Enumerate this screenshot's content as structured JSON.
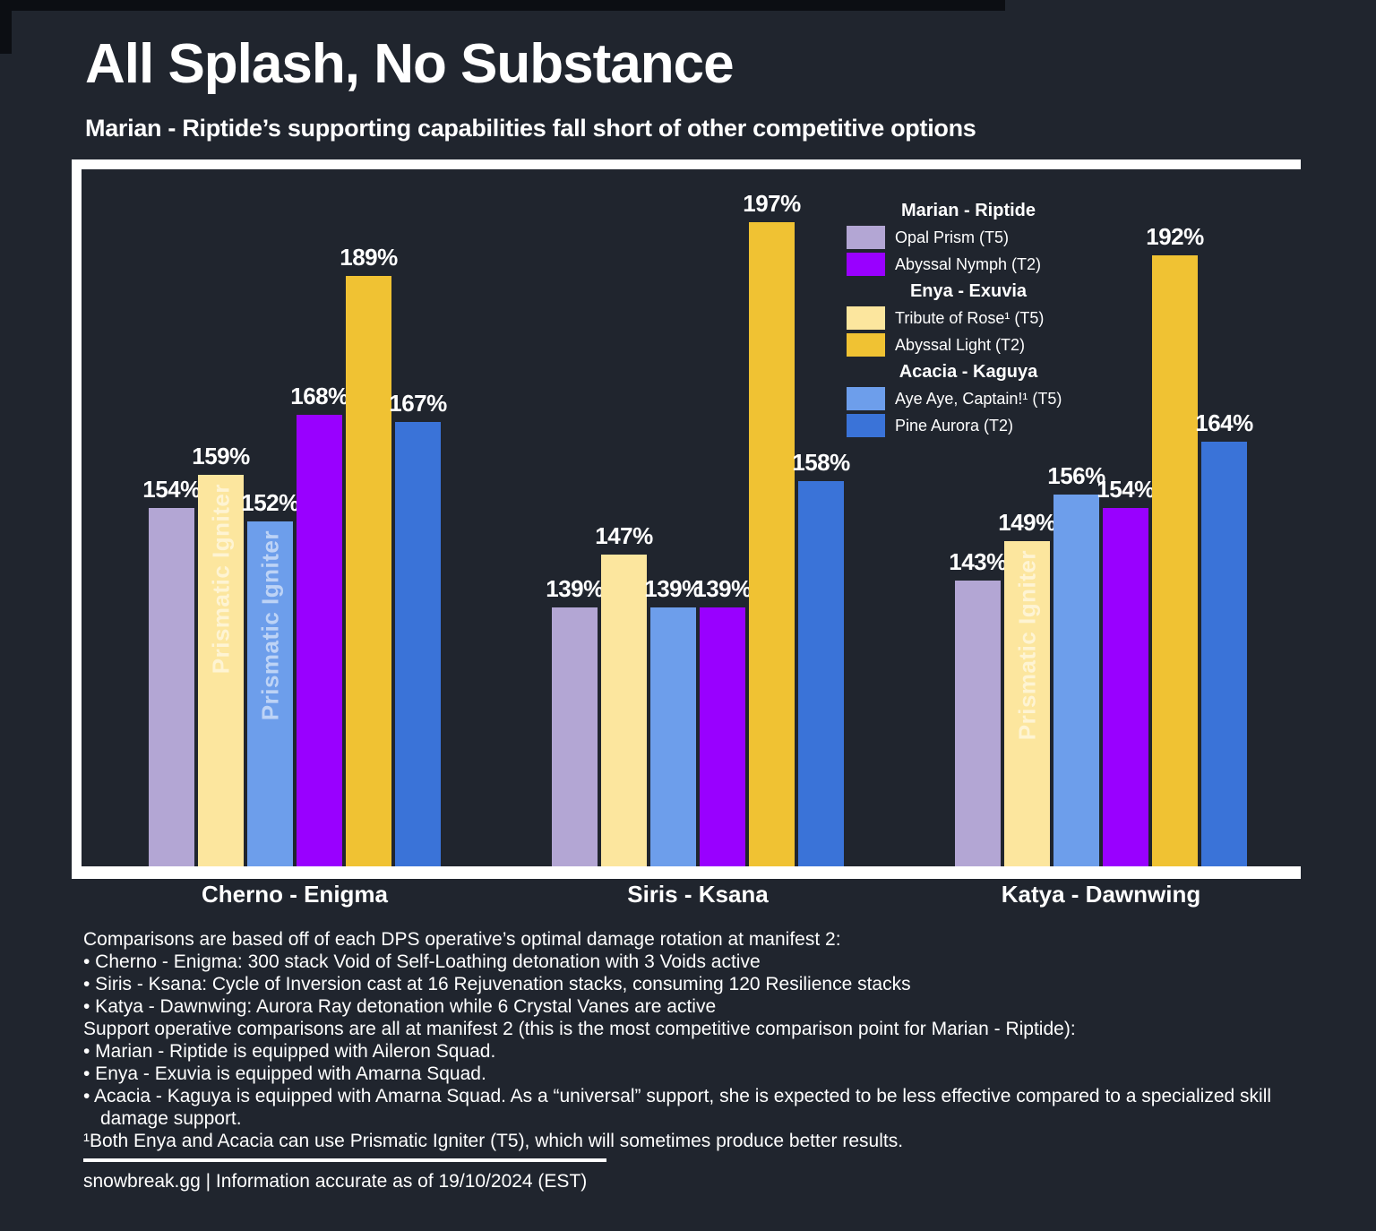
{
  "page": {
    "title": "All Splash, No Substance",
    "subtitle": "Marian - Riptide’s supporting capabilities fall short of other competitive options"
  },
  "colors": {
    "background": "#20252e",
    "frame": "#ffffff",
    "edge_artifact": "#0c0e13",
    "annotation_text": "rgba(255,255,255,0.55)"
  },
  "chart_data": {
    "type": "bar",
    "title": "All Splash, No Substance",
    "subtitle": "Marian - Riptide’s supporting capabilities fall short of other competitive options",
    "categories": [
      "Cherno - Enigma",
      "Siris - Ksana",
      "Katya - Dawnwing"
    ],
    "series": [
      {
        "name": "Opal Prism (T5)",
        "operative": "Marian - Riptide",
        "color": "#b3a6d4",
        "values": [
          154,
          139,
          143
        ]
      },
      {
        "name": "Tribute of Rose¹ (T5)",
        "operative": "Enya - Exuvia",
        "color": "#fce69e",
        "values": [
          159,
          147,
          149
        ]
      },
      {
        "name": "Aye Aye, Captain!¹ (T5)",
        "operative": "Acacia - Kaguya",
        "color": "#6d9eeb",
        "values": [
          152,
          139,
          156
        ]
      },
      {
        "name": "Abyssal Nymph (T2)",
        "operative": "Marian - Riptide",
        "color": "#9900ff",
        "values": [
          168,
          139,
          154
        ]
      },
      {
        "name": "Abyssal Light (T2)",
        "operative": "Enya - Exuvia",
        "color": "#f0c233",
        "values": [
          189,
          197,
          192
        ]
      },
      {
        "name": "Pine Aurora (T2)",
        "operative": "Acacia - Kaguya",
        "color": "#3a73d8",
        "values": [
          167,
          158,
          164
        ]
      }
    ],
    "value_suffix": "%",
    "ylim": [
      100,
      205
    ],
    "grid": false,
    "legend_position": "top-right-inside",
    "annotation_text": "Prismatic Igniter",
    "annotations": [
      {
        "category": 0,
        "series": 1
      },
      {
        "category": 0,
        "series": 2
      },
      {
        "category": 2,
        "series": 1
      }
    ],
    "legend": {
      "sections": [
        {
          "header": "Marian - Riptide",
          "items": [
            {
              "label": "Opal Prism (T5)",
              "color": "#b3a6d4"
            },
            {
              "label": "Abyssal Nymph (T2)",
              "color": "#9900ff"
            }
          ]
        },
        {
          "header": "Enya - Exuvia",
          "items": [
            {
              "label": "Tribute of Rose¹ (T5)",
              "color": "#fce69e"
            },
            {
              "label": "Abyssal Light (T2)",
              "color": "#f0c233"
            }
          ]
        },
        {
          "header": "Acacia - Kaguya",
          "items": [
            {
              "label": "Aye Aye, Captain!¹ (T5)",
              "color": "#6d9eeb"
            },
            {
              "label": "Pine Aurora (T2)",
              "color": "#3a73d8"
            }
          ]
        }
      ]
    }
  },
  "footer": {
    "lines": [
      {
        "text": "Comparisons are based off of each DPS operative’s optimal damage rotation at manifest 2:",
        "bullet": false
      },
      {
        "text": "• Cherno - Enigma: 300 stack Void of Self-Loathing detonation with 3 Voids active",
        "bullet": true
      },
      {
        "text": "• Siris - Ksana: Cycle of Inversion cast at 16 Rejuvenation stacks, consuming 120 Resilience stacks",
        "bullet": true
      },
      {
        "text": "• Katya - Dawnwing: Aurora Ray detonation while 6 Crystal Vanes are active",
        "bullet": true
      },
      {
        "text": "Support operative comparisons are all at manifest 2 (this is the most competitive comparison point for Marian - Riptide):",
        "bullet": false
      },
      {
        "text": "• Marian - Riptide is equipped with Aileron Squad.",
        "bullet": true
      },
      {
        "text": "• Enya - Exuvia is equipped with Amarna Squad.",
        "bullet": true
      },
      {
        "text": "• Acacia - Kaguya is equipped with Amarna Squad. As a “universal” support, she is expected to be less effective compared to a specialized skill damage support.",
        "bullet": true
      },
      {
        "text": "¹Both Enya and Acacia can use Prismatic Igniter (T5), which will sometimes produce better results.",
        "bullet": false
      }
    ],
    "source_line": "snowbreak.gg | Information accurate as of 19/10/2024 (EST)"
  }
}
